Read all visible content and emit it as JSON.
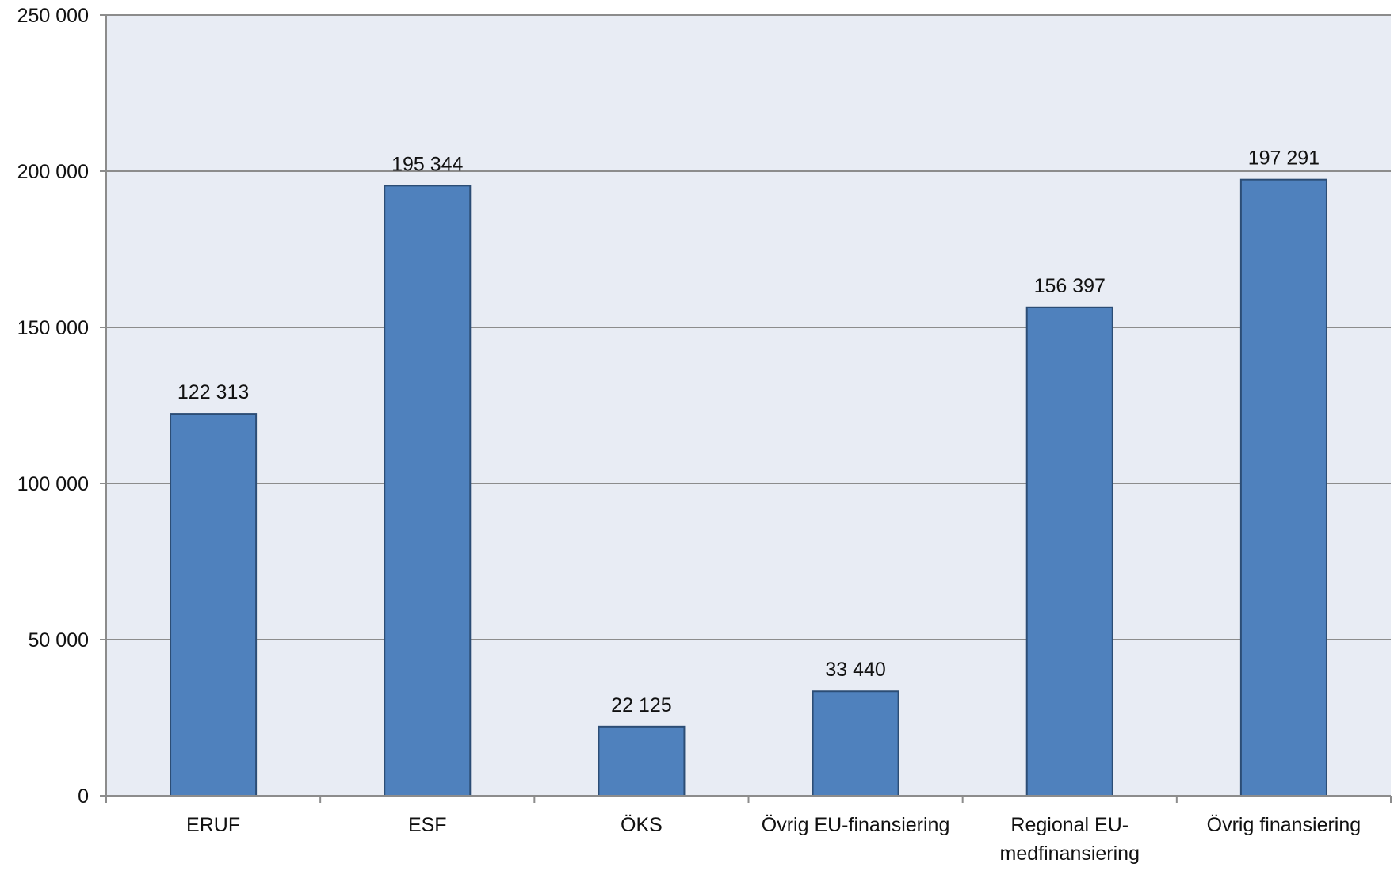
{
  "chart_data": {
    "type": "bar",
    "title": "",
    "xlabel": "",
    "ylabel": "",
    "categories": [
      [
        "ERUF"
      ],
      [
        "ESF"
      ],
      [
        "ÖKS"
      ],
      [
        "Övrig EU-finansiering"
      ],
      [
        "Regional EU-",
        "medfinansiering"
      ],
      [
        "Övrig finansiering"
      ]
    ],
    "values": [
      122313,
      195344,
      22125,
      33440,
      156397,
      197291
    ],
    "value_labels": [
      "122 313",
      "195 344",
      "22 125",
      "33 440",
      "156 397",
      "197 291"
    ],
    "ylim": [
      0,
      250000
    ],
    "y_ticks": [
      0,
      50000,
      100000,
      150000,
      200000,
      250000
    ],
    "y_tick_labels": [
      "0",
      "50 000",
      "100 000",
      "150 000",
      "200 000",
      "250 000"
    ],
    "grid": true,
    "legend": "none"
  },
  "colors": {
    "bar_fill": "#4f81bd",
    "bar_stroke": "#2c4d75",
    "plot_background": "#e8ecf4",
    "gridline": "#8c8c8c",
    "axis": "#8c8c8c",
    "text": "#111111"
  }
}
